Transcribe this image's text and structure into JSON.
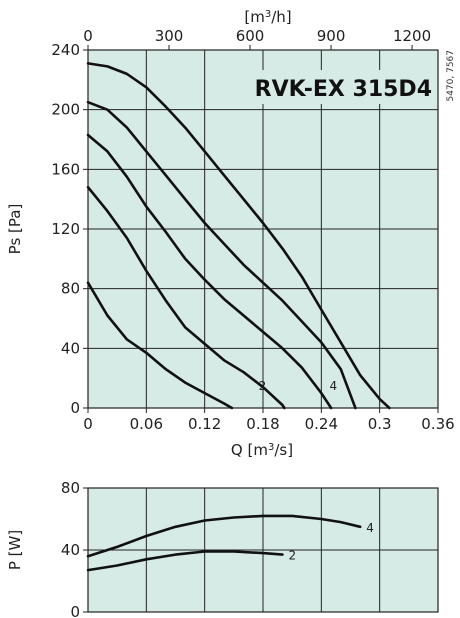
{
  "model": "RVK-EX 315D4",
  "side_code": "5470, 7567",
  "colors": {
    "plot_bg": "#d7ebe6",
    "grid": "#222222",
    "curve": "#111111"
  },
  "chart_data": [
    {
      "type": "line",
      "ylabel": "Ps [Pa]",
      "xlabel": "Q [m3/s]",
      "xlabel_parts": {
        "pre": "Q [m",
        "sup": "3",
        "post": "/s]"
      },
      "top_axis": {
        "unit": "[m3/h]",
        "unit_parts": {
          "pre": "[m",
          "sup": "3",
          "post": "/h]"
        },
        "ticks": [
          "0",
          "300",
          "600",
          "900",
          "1200"
        ],
        "values": [
          0,
          300,
          600,
          900,
          1200
        ]
      },
      "xlim": [
        0,
        0.36
      ],
      "ylim": [
        0,
        240
      ],
      "xticks": [
        "0",
        "0.06",
        "0.12",
        "0.18",
        "0.24",
        "0.3",
        "0.36"
      ],
      "xtick_values": [
        0,
        0.06,
        0.12,
        0.18,
        0.24,
        0.3,
        0.36
      ],
      "yticks": [
        "0",
        "40",
        "80",
        "120",
        "160",
        "200",
        "240"
      ],
      "ytick_values": [
        0,
        40,
        80,
        120,
        160,
        200,
        240
      ],
      "grid": true,
      "series": [
        {
          "name": "",
          "points": [
            [
              0,
              84
            ],
            [
              0.02,
              62
            ],
            [
              0.04,
              46
            ],
            [
              0.06,
              37
            ],
            [
              0.08,
              26
            ],
            [
              0.1,
              17
            ],
            [
              0.12,
              10
            ],
            [
              0.14,
              3
            ],
            [
              0.148,
              0
            ]
          ]
        },
        {
          "name": "2",
          "points": [
            [
              0,
              148
            ],
            [
              0.02,
              132
            ],
            [
              0.04,
              114
            ],
            [
              0.06,
              92
            ],
            [
              0.08,
              72
            ],
            [
              0.1,
              54
            ],
            [
              0.12,
              43
            ],
            [
              0.14,
              32
            ],
            [
              0.16,
              24
            ],
            [
              0.18,
              14
            ],
            [
              0.2,
              2
            ],
            [
              0.202,
              0
            ]
          ]
        },
        {
          "name": "",
          "points": [
            [
              0,
              183
            ],
            [
              0.02,
              172
            ],
            [
              0.04,
              155
            ],
            [
              0.06,
              135
            ],
            [
              0.08,
              118
            ],
            [
              0.1,
              100
            ],
            [
              0.12,
              86
            ],
            [
              0.14,
              73
            ],
            [
              0.16,
              62
            ],
            [
              0.18,
              51
            ],
            [
              0.2,
              40
            ],
            [
              0.22,
              27
            ],
            [
              0.24,
              10
            ],
            [
              0.25,
              0
            ]
          ]
        },
        {
          "name": "4",
          "points": [
            [
              0,
              205
            ],
            [
              0.02,
              200
            ],
            [
              0.04,
              188
            ],
            [
              0.06,
              172
            ],
            [
              0.08,
              156
            ],
            [
              0.1,
              140
            ],
            [
              0.12,
              124
            ],
            [
              0.14,
              110
            ],
            [
              0.16,
              96
            ],
            [
              0.18,
              84
            ],
            [
              0.2,
              72
            ],
            [
              0.22,
              58
            ],
            [
              0.24,
              44
            ],
            [
              0.26,
              26
            ],
            [
              0.275,
              0
            ]
          ]
        },
        {
          "name": "",
          "points": [
            [
              0,
              231
            ],
            [
              0.02,
              229
            ],
            [
              0.04,
              224
            ],
            [
              0.06,
              215
            ],
            [
              0.08,
              202
            ],
            [
              0.1,
              188
            ],
            [
              0.12,
              172
            ],
            [
              0.14,
              156
            ],
            [
              0.16,
              140
            ],
            [
              0.18,
              124
            ],
            [
              0.2,
              107
            ],
            [
              0.22,
              88
            ],
            [
              0.24,
              66
            ],
            [
              0.26,
              44
            ],
            [
              0.28,
              22
            ],
            [
              0.3,
              6
            ],
            [
              0.31,
              0
            ]
          ]
        }
      ]
    },
    {
      "type": "line",
      "ylabel": "P [W]",
      "xlim": [
        0,
        0.36
      ],
      "ylim": [
        0,
        80
      ],
      "yticks": [
        "0",
        "40",
        "80"
      ],
      "ytick_values": [
        0,
        40,
        80
      ],
      "grid": true,
      "series": [
        {
          "name": "4",
          "points": [
            [
              0,
              36
            ],
            [
              0.03,
              42
            ],
            [
              0.06,
              49
            ],
            [
              0.09,
              55
            ],
            [
              0.12,
              59
            ],
            [
              0.15,
              61
            ],
            [
              0.18,
              62
            ],
            [
              0.21,
              62
            ],
            [
              0.24,
              60
            ],
            [
              0.26,
              58
            ],
            [
              0.28,
              55
            ]
          ]
        },
        {
          "name": "2",
          "points": [
            [
              0,
              27
            ],
            [
              0.03,
              30
            ],
            [
              0.06,
              34
            ],
            [
              0.09,
              37
            ],
            [
              0.12,
              39
            ],
            [
              0.15,
              39
            ],
            [
              0.18,
              38
            ],
            [
              0.2,
              37
            ]
          ]
        }
      ]
    }
  ]
}
